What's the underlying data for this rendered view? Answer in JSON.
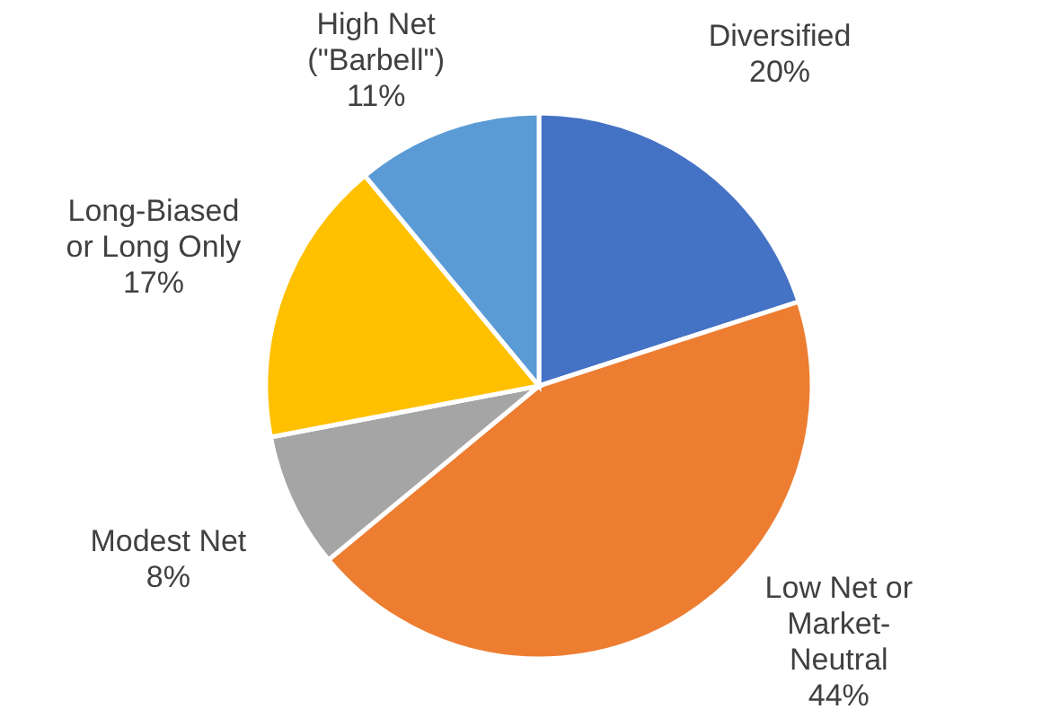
{
  "chart_data": {
    "type": "pie",
    "categories": [
      "Diversified",
      "Low Net or Market-Neutral",
      "Modest Net",
      "Long-Biased or Long Only",
      "High Net (\"Barbell\")"
    ],
    "values": [
      20,
      44,
      8,
      17,
      11
    ],
    "colors": [
      "#4472c4",
      "#ed7d31",
      "#a5a5a5",
      "#ffc000",
      "#5b9bd5"
    ],
    "value_labels": [
      "20%",
      "44%",
      "8%",
      "17%",
      "11%"
    ],
    "legend": false
  }
}
